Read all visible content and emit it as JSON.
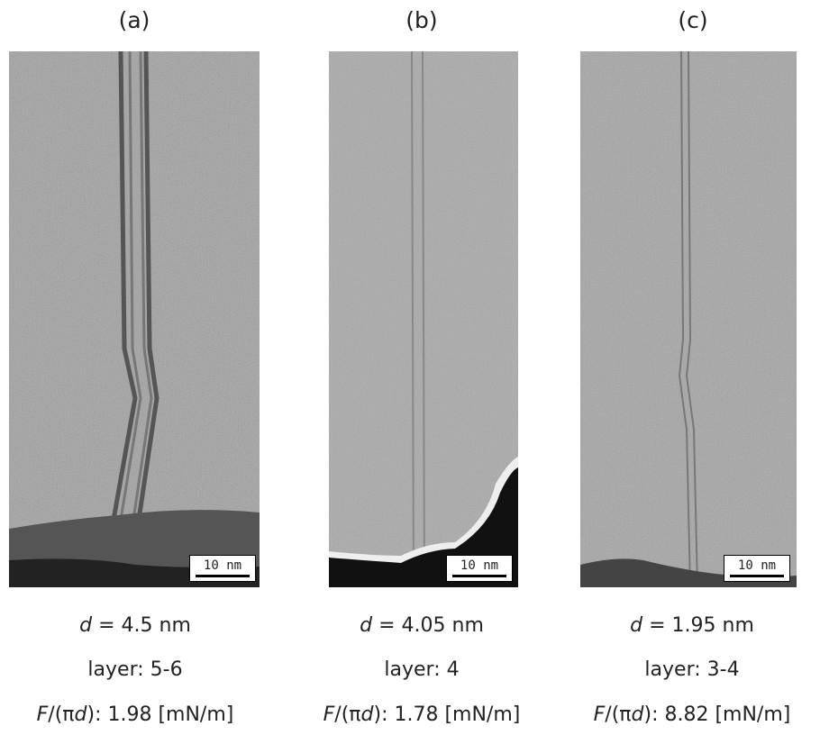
{
  "panels": [
    {
      "label": "(a)",
      "scale_bar": "10 nm",
      "d_symbol": "d",
      "d_text": "= 4.5 nm",
      "layer": "layer: 5-6",
      "force": {
        "f": "F",
        "mid": "/(π",
        "d": "d",
        "rest": "): 1.98 [mN/m]"
      }
    },
    {
      "label": "(b)",
      "scale_bar": "10 nm",
      "d_symbol": "d",
      "d_text": "= 4.05 nm",
      "layer": "layer: 4",
      "force": {
        "f": "F",
        "mid": "/(π",
        "d": "d",
        "rest": "): 1.78 [mN/m]"
      }
    },
    {
      "label": "(c)",
      "scale_bar": "10 nm",
      "d_symbol": "d",
      "d_text": "= 1.95 nm",
      "layer": "layer: 3-4",
      "force": {
        "f": "F",
        "mid": "/(π",
        "d": "d",
        "rest": "): 8.82 [mN/m]"
      }
    }
  ]
}
